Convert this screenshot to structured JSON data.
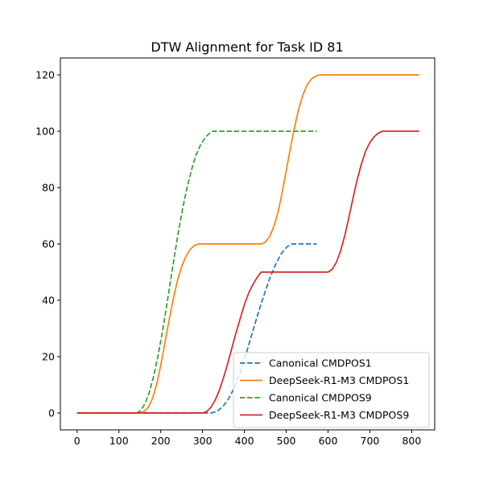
{
  "chart_data": {
    "type": "line",
    "title": "DTW Alignment for Task ID 81",
    "xlabel": "",
    "ylabel": "",
    "xlim": [
      -40,
      855
    ],
    "ylim": [
      -6,
      126
    ],
    "xticks": [
      0,
      100,
      200,
      300,
      400,
      500,
      600,
      700,
      800
    ],
    "yticks": [
      0,
      20,
      40,
      60,
      80,
      100,
      120
    ],
    "grid": false,
    "legend_position": "lower-right",
    "series": [
      {
        "name": "Canonical CMDPOS1",
        "color": "#1f77b4",
        "style": "dashed",
        "x": [
          0,
          320,
          334,
          348,
          362,
          376,
          390,
          404,
          418,
          432,
          446,
          460,
          474,
          488,
          502,
          515,
          573
        ],
        "y": [
          0,
          0,
          0.5,
          2.2,
          5,
          9,
          14.5,
          21,
          28,
          35,
          41.5,
          47.5,
          52.5,
          56.5,
          59,
          60,
          60
        ]
      },
      {
        "name": "DeepSeek-R1-M3 CMDPOS1",
        "color": "#ff7f0e",
        "style": "solid",
        "x": [
          0,
          150,
          160,
          170,
          180,
          190,
          200,
          210,
          220,
          230,
          240,
          250,
          260,
          270,
          280,
          290,
          440,
          450,
          460,
          470,
          480,
          490,
          500,
          510,
          520,
          530,
          540,
          550,
          560,
          570,
          580,
          590,
          600,
          818
        ],
        "y": [
          0,
          0,
          0.5,
          2,
          5,
          10,
          17,
          25,
          33,
          40.5,
          47,
          52,
          55.5,
          58,
          59.4,
          60,
          60,
          60.6,
          62.5,
          66,
          71,
          78,
          86,
          94,
          101.5,
          108,
          113,
          116.5,
          118.5,
          119.5,
          120,
          120,
          120,
          120
        ]
      },
      {
        "name": "Canonical CMDPOS9",
        "color": "#2ca02c",
        "style": "dashed",
        "x": [
          0,
          143,
          153,
          163,
          173,
          183,
          193,
          203,
          213,
          223,
          233,
          243,
          253,
          263,
          273,
          283,
          293,
          303,
          313,
          323,
          573
        ],
        "y": [
          0,
          0,
          1,
          3.5,
          7.5,
          13,
          20,
          28,
          37,
          46.5,
          56,
          65,
          73,
          80,
          86,
          91,
          94.5,
          97,
          98.8,
          100,
          100
        ]
      },
      {
        "name": "DeepSeek-R1-M3 CMDPOS9",
        "color": "#d62728",
        "style": "solid",
        "x": [
          0,
          300,
          310,
          320,
          330,
          340,
          350,
          360,
          370,
          380,
          390,
          400,
          410,
          420,
          430,
          440,
          600,
          610,
          620,
          630,
          640,
          650,
          660,
          670,
          680,
          690,
          700,
          710,
          720,
          730,
          740,
          818
        ],
        "y": [
          0,
          0,
          0.5,
          2,
          4.5,
          8,
          12.5,
          17.5,
          23,
          28.5,
          33.5,
          38.5,
          42.5,
          45.5,
          48,
          50,
          50,
          51,
          53.5,
          57.5,
          63,
          69.5,
          76.5,
          83,
          88.5,
          93,
          96,
          98,
          99.3,
          100,
          100,
          100
        ]
      }
    ]
  }
}
